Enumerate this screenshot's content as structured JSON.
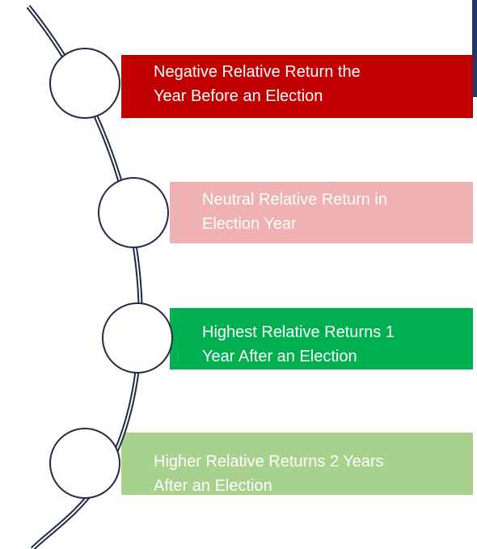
{
  "items": [
    {
      "line1": "Negative Relative Return the",
      "line2": "Year Before an Election"
    },
    {
      "line1": "Neutral Relative Return in",
      "line2": "Election Year"
    },
    {
      "line1": "Highest Relative Returns 1",
      "line2": "Year After an Election"
    },
    {
      "line1": "Higher Relative Returns 2 Years",
      "line2": "After an Election"
    }
  ]
}
